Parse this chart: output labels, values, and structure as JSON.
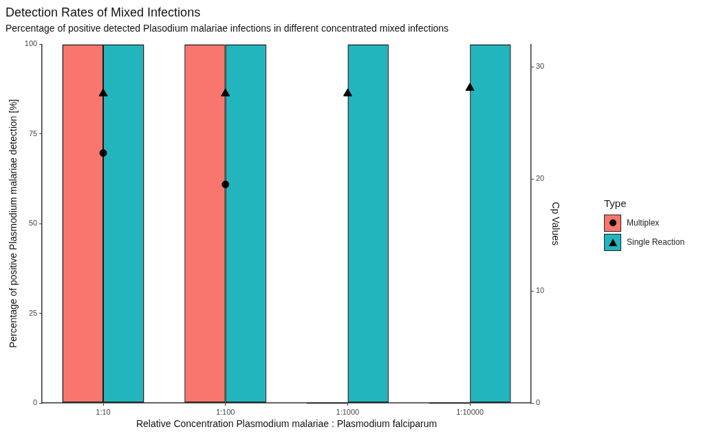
{
  "chart_data": {
    "type": "bar",
    "title": "Detection Rates of Mixed Infections",
    "subtitle": "Percentage of positive detected Plasodium malariae infections in different concentrated mixed infections",
    "xlabel": "Relative Concentration Plasmodium malariae : Plasmodium falciparum",
    "ylabel": "Percentage of positive Plasmodium malariae detection [%]",
    "y2label": "Cp Values",
    "legend_title": "Type",
    "categories": [
      "1:10",
      "1:100",
      "1:1000",
      "1:10000"
    ],
    "series": [
      {
        "name": "Multiplex",
        "color": "#f8766d",
        "values": [
          100,
          100,
          0,
          0
        ]
      },
      {
        "name": "Single Reaction",
        "color": "#22b5bd",
        "values": [
          100,
          100,
          100,
          100
        ]
      },
      {
        "type": "scatter",
        "axis": "y2",
        "color": "#000000",
        "marker": "circle",
        "x": [
          "1:10",
          "1:100"
        ],
        "values": [
          22.3,
          19.5
        ]
      },
      {
        "type": "scatter",
        "axis": "y2",
        "color": "#000000",
        "marker": "triangle",
        "x": [
          "1:10",
          "1:100",
          "1:1000",
          "1:10000"
        ],
        "values": [
          27.6,
          27.6,
          27.6,
          28.1
        ]
      }
    ],
    "ylim": [
      0,
      100
    ],
    "yticks": [
      0,
      25,
      50,
      75,
      100
    ],
    "y2lim": [
      0,
      32
    ],
    "y2ticks": [
      0,
      10,
      20,
      30
    ],
    "grid": false,
    "legend": "right"
  }
}
